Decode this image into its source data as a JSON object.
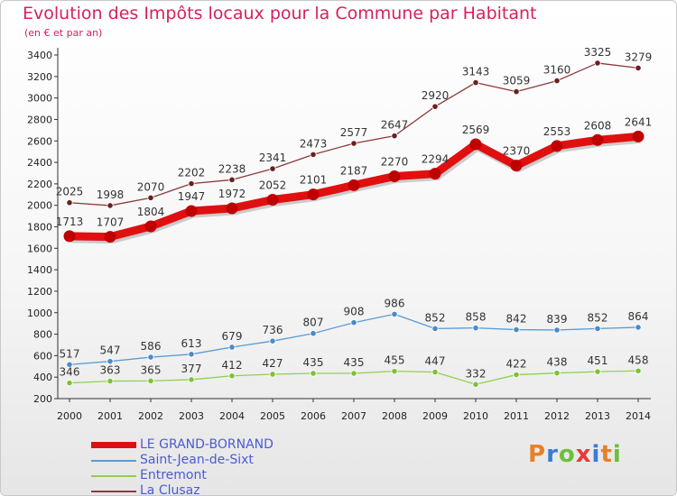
{
  "chart_data": {
    "type": "line",
    "title": "Evolution des Impôts locaux pour la Commune par Habitant",
    "subtitle": "(en € et par an)",
    "categories": [
      "2000",
      "2001",
      "2002",
      "2003",
      "2004",
      "2005",
      "2006",
      "2007",
      "2008",
      "2009",
      "2010",
      "2011",
      "2012",
      "2013",
      "2014"
    ],
    "ylim": [
      200,
      3400
    ],
    "yticks": [
      200,
      400,
      600,
      800,
      1000,
      1200,
      1400,
      1600,
      1800,
      2000,
      2200,
      2400,
      2600,
      2800,
      3000,
      3200,
      3400
    ],
    "grid": false,
    "legend_position": "bottom-left",
    "series": [
      {
        "name": "LE GRAND-BORNAND",
        "color": "#e01010",
        "marker": "#c00000",
        "values": [
          1713,
          1707,
          1804,
          1947,
          1972,
          2052,
          2101,
          2187,
          2270,
          2294,
          2569,
          2370,
          2553,
          2608,
          2641
        ]
      },
      {
        "name": "Saint-Jean-de-Sixt",
        "color": "#5b9bd5",
        "marker": "#4a8ac8",
        "values": [
          517,
          547,
          586,
          613,
          679,
          736,
          807,
          908,
          986,
          852,
          858,
          842,
          839,
          852,
          864
        ]
      },
      {
        "name": "Entremont",
        "color": "#92d050",
        "marker": "#7cc238",
        "values": [
          346,
          363,
          365,
          377,
          412,
          427,
          435,
          435,
          455,
          447,
          332,
          422,
          438,
          451,
          458
        ]
      },
      {
        "name": "La Clusaz",
        "color": "#8b3a3a",
        "marker": "#6b1f1f",
        "values": [
          2025,
          1998,
          2070,
          2202,
          2238,
          2341,
          2473,
          2577,
          2647,
          2920,
          3143,
          3059,
          3160,
          3325,
          3279
        ]
      }
    ]
  },
  "brand": {
    "text": "Proxiti",
    "letter_colors": [
      "#e8802a",
      "#3a7bd5",
      "#6cbf3a",
      "#e83a3a",
      "#3a7bd5",
      "#e8802a",
      "#6cbf3a"
    ]
  }
}
